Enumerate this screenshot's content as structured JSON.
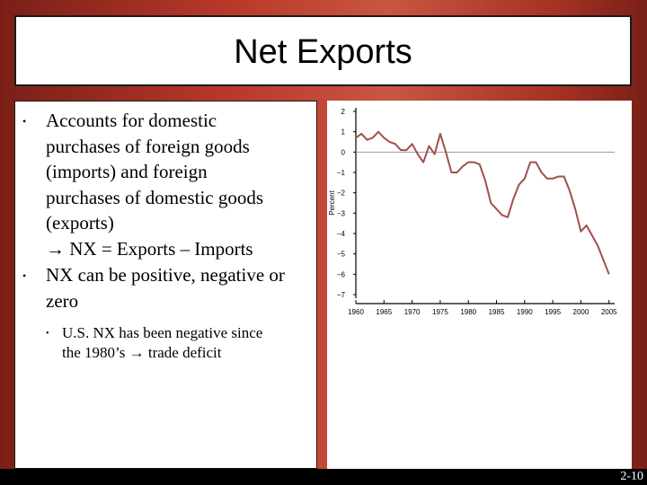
{
  "slide": {
    "title": "Net Exports",
    "slide_number": "2-10"
  },
  "bullets": [
    {
      "lines": [
        "Accounts for domestic",
        "purchases of foreign goods",
        "(imports) and foreign",
        "purchases of domestic goods",
        "(exports)",
        "→ NX = Exports – Imports"
      ]
    },
    {
      "lines": [
        "NX can be positive, negative or",
        "zero"
      ]
    }
  ],
  "sub_bullets": [
    {
      "lines": [
        "U.S. NX has been negative since",
        "the 1980’s → trade deficit"
      ]
    }
  ],
  "chart_data": {
    "type": "line",
    "ylabel": "Percent",
    "xlabel": "",
    "xlim": [
      1960,
      2006
    ],
    "ylim": [
      -7,
      2
    ],
    "x_ticks": [
      1960,
      1965,
      1970,
      1975,
      1980,
      1985,
      1990,
      1995,
      2000,
      2005
    ],
    "y_ticks": [
      2,
      1,
      0,
      -1,
      -2,
      -3,
      -4,
      -5,
      -6,
      -7
    ],
    "reference_line": 0,
    "colors": {
      "line": "#a0504a",
      "zero_line": "#9a9a9a",
      "axis": "#000000"
    },
    "series": [
      {
        "x": [
          1960,
          1961,
          1962,
          1963,
          1964,
          1965,
          1966,
          1967,
          1968,
          1969,
          1970,
          1971,
          1972,
          1973,
          1974,
          1975,
          1976,
          1977,
          1978,
          1979,
          1980,
          1981,
          1982,
          1983,
          1984,
          1985,
          1986,
          1987,
          1988,
          1989,
          1990,
          1991,
          1992,
          1993,
          1994,
          1995,
          1996,
          1997,
          1998,
          1999,
          2000,
          2001,
          2002,
          2003,
          2004,
          2005
        ],
        "y": [
          0.7,
          0.9,
          0.6,
          0.7,
          1.0,
          0.7,
          0.5,
          0.4,
          0.1,
          0.1,
          0.4,
          -0.1,
          -0.5,
          0.3,
          -0.1,
          0.9,
          0.0,
          -1.0,
          -1.0,
          -0.7,
          -0.5,
          -0.5,
          -0.6,
          -1.4,
          -2.5,
          -2.8,
          -3.1,
          -3.2,
          -2.3,
          -1.6,
          -1.3,
          -0.5,
          -0.5,
          -1.0,
          -1.3,
          -1.3,
          -1.2,
          -1.2,
          -1.9,
          -2.8,
          -3.9,
          -3.6,
          -4.1,
          -4.6,
          -5.3,
          -6.0
        ]
      }
    ]
  }
}
